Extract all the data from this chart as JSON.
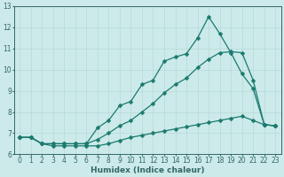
{
  "line1_x": [
    0,
    1,
    2,
    3,
    4,
    5,
    6,
    7,
    8,
    9,
    10,
    11,
    12,
    13,
    14,
    15,
    16,
    17,
    18,
    19,
    20,
    21,
    22,
    23
  ],
  "line1_y": [
    6.8,
    6.8,
    6.5,
    6.5,
    6.5,
    6.5,
    6.5,
    7.25,
    7.6,
    8.3,
    8.5,
    9.3,
    9.5,
    10.4,
    10.6,
    10.75,
    11.5,
    12.5,
    11.7,
    10.8,
    9.8,
    9.1,
    7.4,
    7.35
  ],
  "line2_x": [
    0,
    1,
    2,
    3,
    4,
    5,
    6,
    7,
    8,
    9,
    10,
    11,
    12,
    13,
    14,
    15,
    16,
    17,
    18,
    19,
    20,
    21,
    22,
    23
  ],
  "line2_y": [
    6.8,
    6.8,
    6.5,
    6.5,
    6.5,
    6.5,
    6.5,
    6.7,
    7.0,
    7.35,
    7.6,
    8.0,
    8.4,
    8.9,
    9.3,
    9.6,
    10.1,
    10.5,
    10.8,
    10.85,
    10.8,
    9.5,
    7.4,
    7.35
  ],
  "line3_x": [
    0,
    1,
    2,
    3,
    4,
    5,
    6,
    7,
    8,
    9,
    10,
    11,
    12,
    13,
    14,
    15,
    16,
    17,
    18,
    19,
    20,
    21,
    22,
    23
  ],
  "line3_y": [
    6.8,
    6.8,
    6.5,
    6.4,
    6.4,
    6.4,
    6.4,
    6.4,
    6.5,
    6.65,
    6.8,
    6.9,
    7.0,
    7.1,
    7.2,
    7.3,
    7.4,
    7.5,
    7.6,
    7.7,
    7.8,
    7.6,
    7.4,
    7.35
  ],
  "line_color": "#1a7a6e",
  "marker": "D",
  "marker_size": 2.5,
  "bg_color": "#cceaea",
  "grid_color": "#b8d8d8",
  "axis_color": "#336666",
  "xlabel": "Humidex (Indice chaleur)",
  "xlabel_fontsize": 6.5,
  "tick_fontsize": 5.5,
  "xlim": [
    -0.5,
    23.5
  ],
  "ylim": [
    6,
    13
  ],
  "yticks": [
    6,
    7,
    8,
    9,
    10,
    11,
    12,
    13
  ],
  "xticks": [
    0,
    1,
    2,
    3,
    4,
    5,
    6,
    7,
    8,
    9,
    10,
    11,
    12,
    13,
    14,
    15,
    16,
    17,
    18,
    19,
    20,
    21,
    22,
    23
  ]
}
